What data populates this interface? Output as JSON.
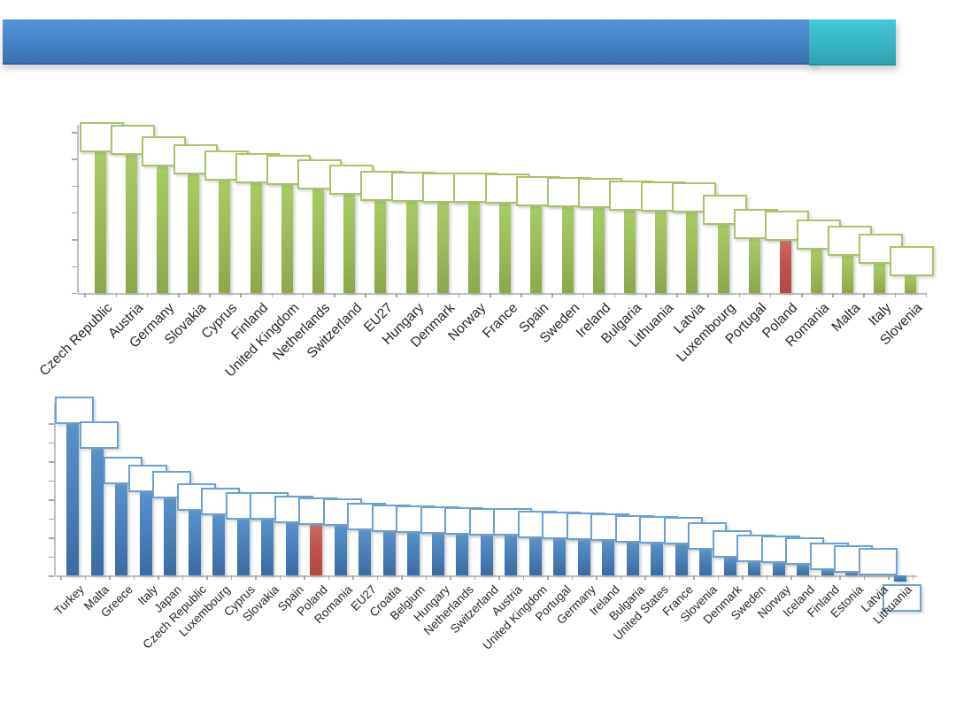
{
  "slide": {
    "title_bar_text": "",
    "accent_square_text": ""
  },
  "colors": {
    "green_bar": "#9BBB59",
    "blue_bar": "#4F81BD",
    "highlight_red": "#C0504D",
    "green_box_border": "#A9C467",
    "blue_box_border": "#6AA0D4",
    "axis_line": "#BFBFBF",
    "tick": "#A6A6A6",
    "label_text": "#262626",
    "header_blue_top": "#5394D8",
    "header_blue_bottom": "#3A70B0",
    "header_teal_top": "#46C7DA",
    "header_teal_bottom": "#2EA3B4"
  },
  "chart_data": [
    {
      "type": "bar",
      "position": "top",
      "title": "",
      "categories": [
        "Czech Republic",
        "Austria",
        "Germany",
        "Slovakia",
        "Cyprus",
        "Finland",
        "United Kingdom",
        "Netherlands",
        "Switzerland",
        "EU27",
        "Hungary",
        "Denmark",
        "Norway",
        "France",
        "Spain",
        "Sweden",
        "Ireland",
        "Bulgaria",
        "Lithuania",
        "Latvia",
        "Luxembourg",
        "Portugal",
        "Poland",
        "Romania",
        "Malta",
        "Italy",
        "Slovenia"
      ],
      "values": [
        100,
        98,
        90,
        84,
        80,
        78,
        77,
        73.5,
        70,
        65.5,
        65,
        64.2,
        64,
        63.3,
        61.8,
        61,
        60.3,
        58.5,
        58,
        57,
        48.3,
        38.5,
        37.3,
        31,
        26.5,
        21,
        12
      ],
      "value_scale": "relative units, tallest bar = 100; numeric axis labels not shown in source",
      "highlight": {
        "category": "Poland",
        "color": "#C0504D"
      },
      "bar_color": "#9BBB59",
      "xlabel": "",
      "ylabel": "",
      "ylim": [
        0,
        118
      ],
      "gridlines": false,
      "legend": false,
      "y_axis_tick_labels": "none (blank)",
      "data_labels": {
        "style": "empty white callout boxes with green border above each bar",
        "text": ""
      }
    },
    {
      "type": "bar",
      "position": "bottom",
      "title": "",
      "categories": [
        "Turkey",
        "Malta",
        "Greece",
        "Italy",
        "Japan",
        "Czech Republic",
        "Luxembourg",
        "Cyprus",
        "Slovakia",
        "Spain",
        "Poland",
        "Romania",
        "EU27",
        "Croatia",
        "Belgium",
        "Hungary",
        "Netherlands",
        "Switzerland",
        "Austria",
        "United Kingdom",
        "Portugal",
        "Germany",
        "Ireland",
        "Bulgaria",
        "United States",
        "France",
        "Slovenia",
        "Denmark",
        "Sweden",
        "Norway",
        "Iceland",
        "Finland",
        "Estonia",
        "Latvia",
        "Lithuania"
      ],
      "values": [
        100,
        84,
        60.5,
        55,
        51,
        43,
        40,
        37.5,
        37,
        35,
        33.5,
        33,
        30.5,
        29,
        28.5,
        28,
        27.3,
        27,
        26.8,
        25,
        24.3,
        24,
        23,
        22,
        21.7,
        21,
        17.5,
        12,
        9.3,
        9,
        7.5,
        4,
        2.5,
        0.8,
        -4
      ],
      "value_scale": "relative units, tallest bar = 100; numeric axis labels not shown in source; Lithuania is negative",
      "highlight": {
        "category": "Poland",
        "color": "#C0504D"
      },
      "bar_color": "#4F81BD",
      "xlabel": "",
      "ylabel": "",
      "ylim": [
        -8,
        113
      ],
      "gridlines": false,
      "legend": false,
      "y_axis_tick_labels": "none (blank)",
      "data_labels": {
        "style": "empty white callout boxes with blue border above each bar (below bar for negative value)",
        "text": ""
      }
    }
  ]
}
